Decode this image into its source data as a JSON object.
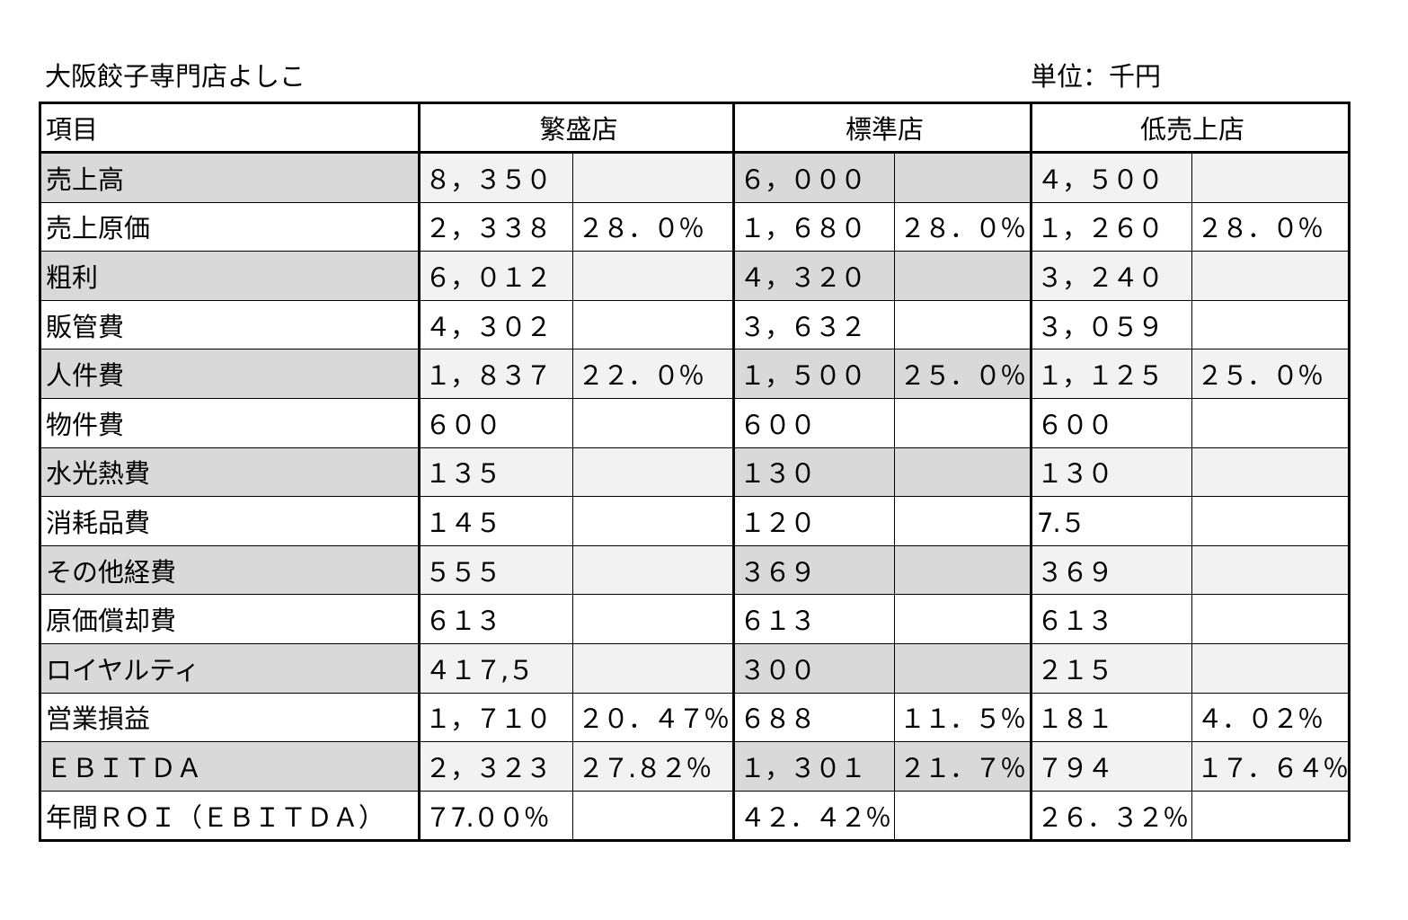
{
  "header": {
    "title": "大阪餃子専門店よしこ",
    "unit": "単位：千円"
  },
  "table": {
    "columns": [
      "項目",
      "繁盛店",
      "標準店",
      "低売上店"
    ],
    "rows": [
      [
        "売上高",
        "８，３５０",
        "",
        "６，０００",
        "",
        "４，５００",
        ""
      ],
      [
        "売上原価",
        "２，３３８",
        "２８．０％",
        "１，６８０",
        "２８．０％",
        "１，２６０",
        "２８．０％"
      ],
      [
        "粗利",
        "６，０１２",
        "",
        "４，３２０",
        "",
        "３，２４０",
        ""
      ],
      [
        "販管費",
        "４，３０２",
        "",
        "３，６３２",
        "",
        "３，０５９",
        ""
      ],
      [
        "人件費",
        "１，８３７",
        "２２．０％",
        "１，５００",
        "２５．０％",
        "１，１２５",
        "２５．０％"
      ],
      [
        "物件費",
        "６００",
        "",
        "６００",
        "",
        "６００",
        ""
      ],
      [
        "水光熱費",
        "１３５",
        "",
        "１３０",
        "",
        "１３０",
        ""
      ],
      [
        "消耗品費",
        "１４５",
        "",
        "１２０",
        "",
        "7.５",
        ""
      ],
      [
        "その他経費",
        "５５５",
        "",
        "３６９",
        "",
        "３６９",
        ""
      ],
      [
        "原価償却費",
        "６１３",
        "",
        "６１３",
        "",
        "６１３",
        ""
      ],
      [
        "ロイヤルティ",
        "４１７,５",
        "",
        "３００",
        "",
        "２１５",
        ""
      ],
      [
        "営業損益",
        "１，７１０",
        "２０．４７％",
        "６８８",
        "１１．５％",
        "１８１",
        "４．０２％"
      ],
      [
        "ＥＢＩＴＤＡ",
        "２，３２３",
        "２７.８２％",
        "１，３０１",
        "２１．７％",
        "７９４",
        "１７．６４％"
      ],
      [
        "年間ＲＯＩ（ＥＢＩＴＤＡ）",
        "７7.００％",
        "",
        "４２．４２％",
        "",
        "２６．３２％",
        ""
      ]
    ]
  }
}
